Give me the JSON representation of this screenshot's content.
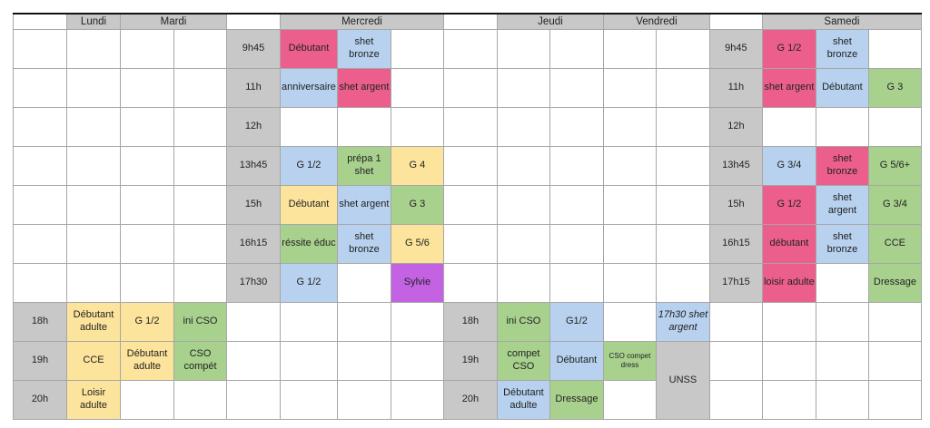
{
  "header": {
    "lundi": "Lundi",
    "mardi": "Mardi",
    "mercredi": "Mercredi",
    "jeudi": "Jeudi",
    "vendredi": "Vendredi",
    "samedi": "Samedi"
  },
  "mercredi": {
    "times": [
      "9h45",
      "11h",
      "12h",
      "13h45",
      "15h",
      "16h15",
      "17h30"
    ],
    "r0": [
      "Débutant",
      "shet bronze"
    ],
    "r1": [
      "anniversaire",
      "shet argent"
    ],
    "r3": [
      "G 1/2",
      "prépa 1 shet",
      "G 4"
    ],
    "r4": [
      "Débutant",
      "shet argent",
      "G 3"
    ],
    "r5": [
      "réssite éduc",
      "shet bronze",
      "G 5/6"
    ],
    "r6": [
      "G 1/2",
      "Sylvie"
    ]
  },
  "samedi": {
    "times": [
      "9h45",
      "11h",
      "12h",
      "13h45",
      "15h",
      "16h15",
      "17h15"
    ],
    "r0": [
      "G 1/2",
      "shet bronze"
    ],
    "r1": [
      "shet argent",
      "Débutant",
      "G 3"
    ],
    "r3": [
      "G 3/4",
      "shet bronze",
      "G 5/6+"
    ],
    "r4": [
      "G 1/2",
      "shet argent",
      "G 3/4"
    ],
    "r5": [
      "débutant",
      "shet bronze",
      "CCE"
    ],
    "r6": [
      "loisir adulte",
      "Dressage"
    ]
  },
  "evening": {
    "times": [
      "18h",
      "19h",
      "20h"
    ],
    "lundi_mardi": {
      "r0": [
        "Débutant adulte",
        "G 1/2",
        "ini CSO"
      ],
      "r1": [
        "CCE",
        "Débutant adulte",
        "CSO compét"
      ],
      "r2": [
        "Loisir adulte"
      ]
    },
    "jeudi_vendredi": {
      "r0": [
        "ini CSO",
        "G1/2",
        "17h30 shet argent"
      ],
      "r1": [
        "compet CSO",
        "Débutant",
        "CSO compet dress",
        "UNSS"
      ],
      "r2": [
        "Débutant adulte",
        "Dressage"
      ]
    }
  },
  "colors": {
    "gray": "#c8c8c8",
    "pink": "#ec5f8c",
    "blue": "#b7d1ee",
    "yellow": "#fde49c",
    "green": "#a9d18e",
    "purple": "#c462e4"
  }
}
